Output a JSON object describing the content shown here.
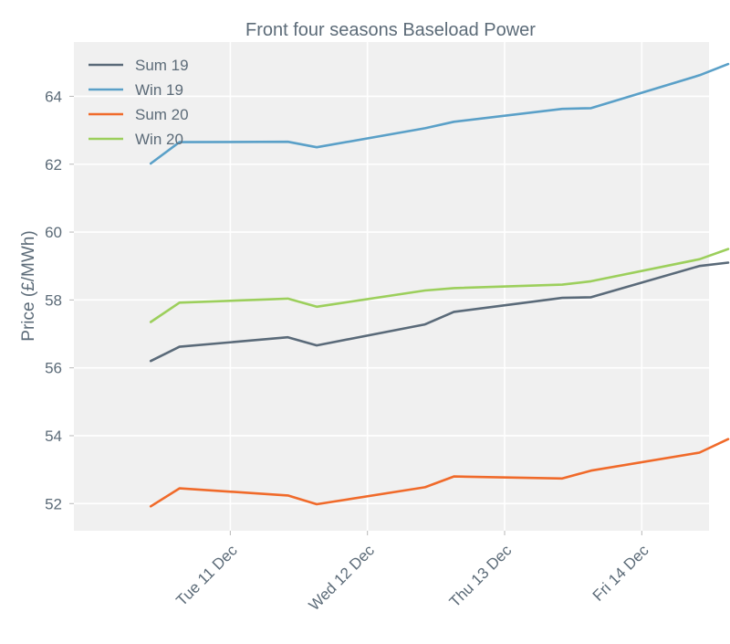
{
  "chart_data": {
    "type": "line",
    "title": "Front four seasons Baseload Power",
    "xlabel": "",
    "ylabel": "Price (£/MWh)",
    "ylim": [
      51.2,
      65.6
    ],
    "yticks": [
      52,
      54,
      56,
      58,
      60,
      62,
      64
    ],
    "xlim": [
      -0.56,
      4.07
    ],
    "xticks": [
      {
        "pos": 0.58,
        "label": "Tue 11 Dec"
      },
      {
        "pos": 1.58,
        "label": "Wed 12 Dec"
      },
      {
        "pos": 2.58,
        "label": "Thu 13 Dec"
      },
      {
        "pos": 3.58,
        "label": "Fri 14 Dec"
      }
    ],
    "x": [
      0.0,
      0.21,
      1.0,
      1.21,
      2.0,
      2.21,
      3.0,
      3.21,
      4.0,
      4.21
    ],
    "grid": true,
    "legend_position": "top-left",
    "colors": {
      "background": "#f0f0f0",
      "grid": "#ffffff",
      "text": "#5c6b78",
      "axis": "#b8b8b8"
    },
    "series": [
      {
        "name": "Sum 19",
        "color": "#5a6a79",
        "values": [
          56.2,
          56.62,
          56.9,
          56.66,
          57.28,
          57.65,
          58.06,
          58.08,
          59.0,
          59.1
        ]
      },
      {
        "name": "Win 19",
        "color": "#5aa0c8",
        "values": [
          62.02,
          62.65,
          62.66,
          62.5,
          63.06,
          63.25,
          63.63,
          63.65,
          64.62,
          64.95
        ]
      },
      {
        "name": "Sum 20",
        "color": "#f06a2a",
        "values": [
          51.92,
          52.45,
          52.24,
          51.98,
          52.48,
          52.8,
          52.74,
          52.97,
          53.5,
          53.9
        ]
      },
      {
        "name": "Win 20",
        "color": "#9ccf5c",
        "values": [
          57.35,
          57.92,
          58.04,
          57.8,
          58.28,
          58.35,
          58.45,
          58.55,
          59.2,
          59.5
        ]
      }
    ]
  }
}
